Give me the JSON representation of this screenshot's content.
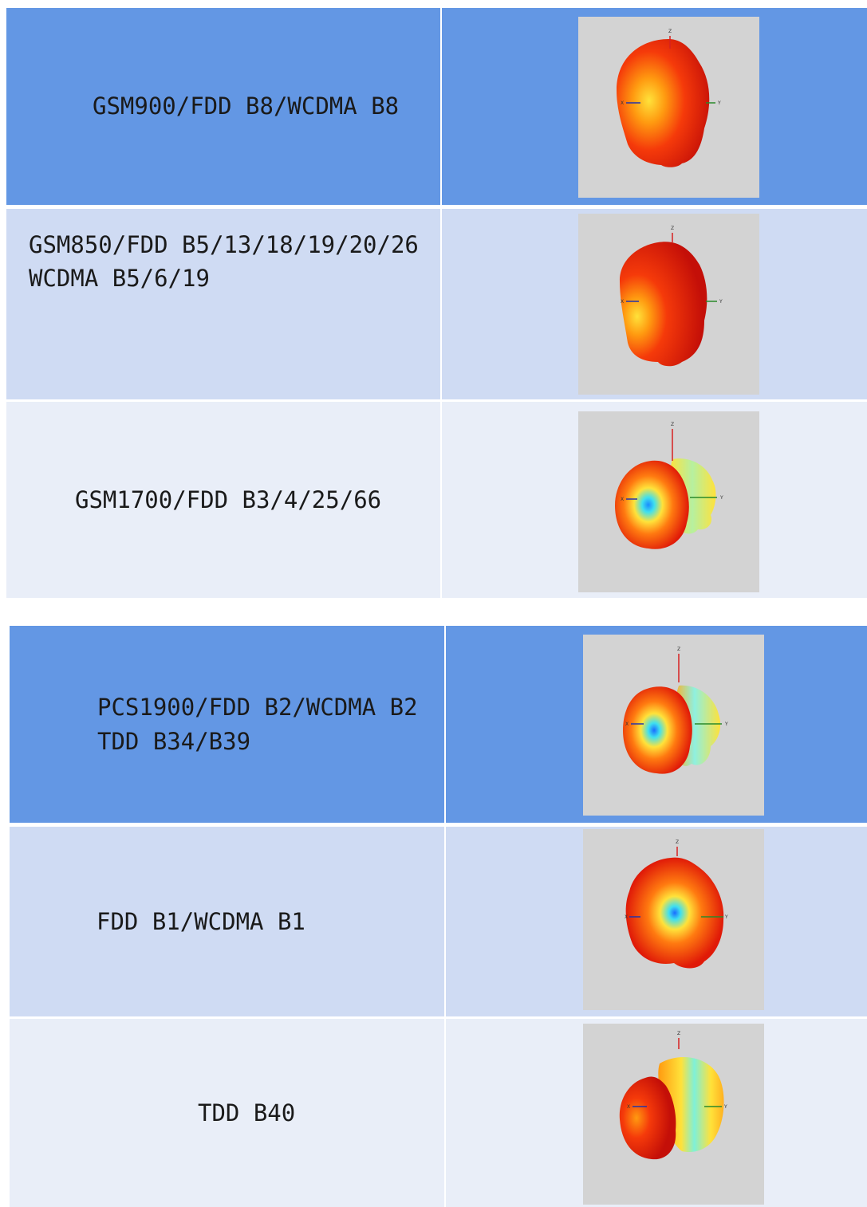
{
  "table1": {
    "rows": [
      {
        "lines": [
          "GSM900/FDD B8/WCDMA B8"
        ],
        "shade": "#6397e4",
        "pattern": "gsm900"
      },
      {
        "lines": [
          "GSM850/FDD B5/13/18/19/20/26",
          "WCDMA B5/6/19"
        ],
        "shade": "#cfdbf3",
        "pattern": "gsm850"
      },
      {
        "lines": [
          "GSM1700/FDD B3/4/25/66"
        ],
        "shade": "#e9eef8",
        "pattern": "gsm1700"
      }
    ]
  },
  "table2": {
    "rows": [
      {
        "lines": [
          "PCS1900/FDD B2/WCDMA B2",
          "TDD B34/B39"
        ],
        "shade": "#6397e4",
        "pattern": "pcs1900"
      },
      {
        "lines": [
          "FDD B1/WCDMA B1"
        ],
        "shade": "#cfdbf3",
        "pattern": "fddb1"
      },
      {
        "lines": [
          "TDD B40"
        ],
        "shade": "#e9eef8",
        "pattern": "tddb40"
      }
    ]
  },
  "axis_labels": {
    "z": "Z",
    "x": "X",
    "y": "Y"
  }
}
